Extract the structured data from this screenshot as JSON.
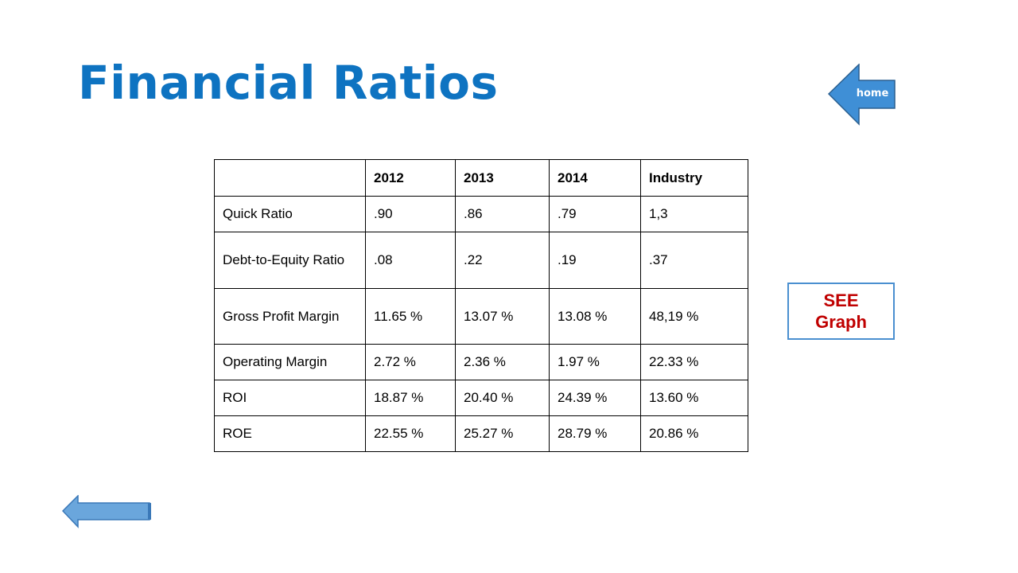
{
  "slide": {
    "title": "Financial Ratios",
    "home_label": "home",
    "see_graph_label": "SEE\nGraph",
    "accent_color": "#0e73c1",
    "arrow_color": "#3f8fd6",
    "graph_label_color": "#c00000"
  },
  "table": {
    "headers": [
      "",
      "2012",
      "2013",
      "2014",
      "Industry"
    ],
    "rows": [
      {
        "label": "Quick Ratio",
        "values": [
          ".90",
          ".86",
          ".79",
          "1,3"
        ]
      },
      {
        "label": "Debt-to-Equity Ratio",
        "values": [
          ".08",
          ".22",
          ".19",
          ".37"
        ]
      },
      {
        "label": "Gross Profit Margin",
        "values": [
          "11.65 %",
          "13.07 %",
          "13.08 %",
          "48,19 %"
        ]
      },
      {
        "label": "Operating Margin",
        "values": [
          "2.72 %",
          "2.36 %",
          "1.97 %",
          "22.33 %"
        ]
      },
      {
        "label": "ROI",
        "values": [
          "18.87 %",
          "20.40 %",
          "24.39 %",
          "13.60 %"
        ]
      },
      {
        "label": "ROE",
        "values": [
          "22.55 %",
          "25.27 %",
          "28.79 %",
          "20.86 %"
        ]
      }
    ]
  },
  "icons": {
    "home": "left-arrow-icon",
    "back": "back-arrow-icon"
  }
}
